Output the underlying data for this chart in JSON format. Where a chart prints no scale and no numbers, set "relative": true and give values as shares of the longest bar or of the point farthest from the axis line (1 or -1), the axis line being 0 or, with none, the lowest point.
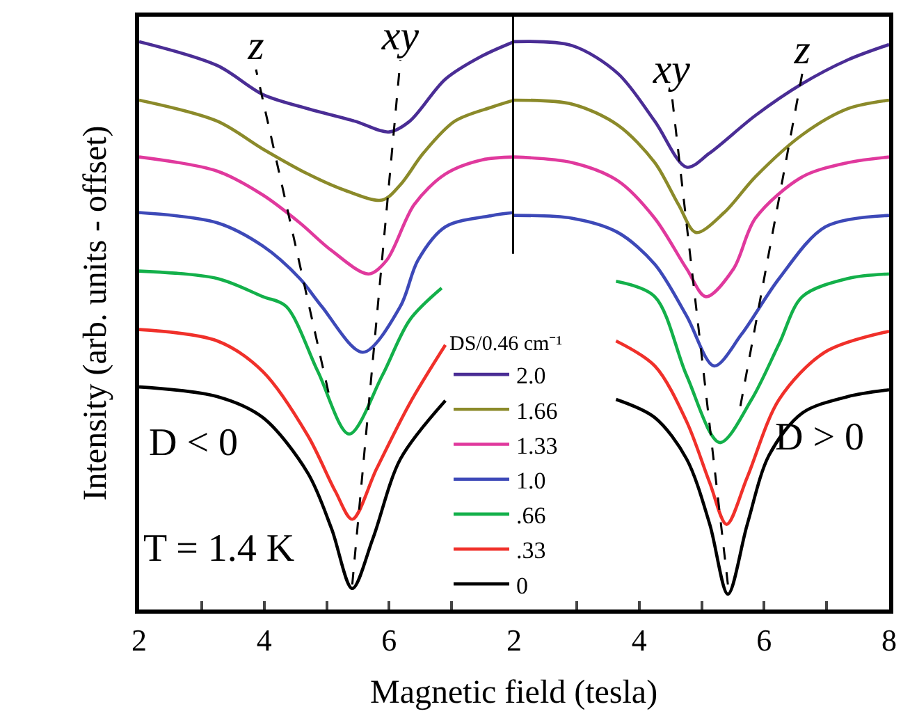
{
  "chart_data": [
    {
      "type": "line",
      "ylabel": "Intensity (arb. units - offset)",
      "xlabel": "Magnetic field (tesla)",
      "legend_title": "DS/0.46 cm⁻¹",
      "legend": "bottom right",
      "relative": true,
      "tick_labels": "x",
      "xlim": [
        2,
        8
      ],
      "xticks": [
        2,
        {
          "value": 3,
          "label": null
        },
        4,
        {
          "value": 5,
          "label": null
        },
        6,
        {
          "value": 7,
          "label": null
        }
      ],
      "annotations": [
        "D < 0",
        "T = 1.4 K"
      ],
      "ref_lines": [
        {
          "axis": "x",
          "value": 8,
          "color": "#000000"
        }
      ],
      "series": [
        {
          "name": "2.0",
          "color": "#4a2d95",
          "x": [
            2,
            3.25,
            3.98,
            4.7,
            5.45,
            6.0,
            6.33,
            6.9,
            7.49,
            8
          ],
          "values": [
            1.0,
            0.958,
            0.907,
            0.882,
            0.86,
            0.841,
            0.86,
            0.934,
            0.975,
            1.0
          ]
        },
        {
          "name": "1.66",
          "color": "#8b8a2a",
          "x": [
            2,
            3.25,
            3.98,
            4.7,
            5.3,
            5.89,
            6.18,
            6.55,
            7.05,
            7.65,
            8
          ],
          "values": [
            0.897,
            0.86,
            0.811,
            0.767,
            0.738,
            0.721,
            0.748,
            0.804,
            0.86,
            0.885,
            0.897
          ]
        },
        {
          "name": "1.33",
          "color": "#e0399d",
          "x": [
            2,
            3.25,
            3.98,
            4.57,
            5.08,
            5.67,
            5.96,
            6.4,
            6.9,
            7.49,
            8
          ],
          "values": [
            0.797,
            0.772,
            0.73,
            0.681,
            0.632,
            0.591,
            0.615,
            0.713,
            0.767,
            0.792,
            0.797
          ]
        },
        {
          "name": "1.0",
          "color": "#3d49b8",
          "x": [
            2,
            3.25,
            3.98,
            4.57,
            4.92,
            5.58,
            6.18,
            6.46,
            6.9,
            7.65,
            8
          ],
          "values": [
            0.699,
            0.681,
            0.64,
            0.583,
            0.534,
            0.453,
            0.534,
            0.615,
            0.674,
            0.694,
            0.699
          ]
        },
        {
          "name": ".66",
          "color": "#13b04a",
          "x": [
            2,
            3.25,
            3.98,
            4.35,
            4.86,
            5.36,
            5.89,
            6.33,
            6.84
          ],
          "values": [
            0.596,
            0.583,
            0.551,
            0.534,
            0.419,
            0.309,
            0.412,
            0.51,
            0.566
          ]
        },
        {
          "name": ".33",
          "color": "#f0302a",
          "x": [
            2,
            3.25,
            3.98,
            4.7,
            5.14,
            5.41,
            5.8,
            6.33,
            6.9
          ],
          "values": [
            0.493,
            0.473,
            0.419,
            0.306,
            0.208,
            0.159,
            0.248,
            0.363,
            0.466
          ]
        },
        {
          "name": "0",
          "color": "#000000",
          "x": [
            2,
            3.25,
            3.98,
            4.7,
            5.08,
            5.41,
            5.74,
            6.18,
            6.9
          ],
          "values": [
            0.392,
            0.375,
            0.338,
            0.24,
            0.142,
            0.037,
            0.125,
            0.265,
            0.368
          ]
        },
        {
          "name": "z",
          "color": "#000000",
          "line_style": "dashed",
          "x": [
            5.03,
            3.87
          ],
          "values": [
            0.382,
            0.951
          ]
        },
        {
          "name": "xy",
          "color": "#000000",
          "line_style": "dashed",
          "x": [
            5.41,
            6.18
          ],
          "values": [
            0.044,
            0.968
          ]
        }
      ]
    },
    {
      "type": "line",
      "relative": true,
      "tick_labels": "x",
      "xlim": [
        2,
        8
      ],
      "xticks": [
        2,
        {
          "value": 3,
          "label": null
        },
        4,
        {
          "value": 5,
          "label": null
        },
        6,
        {
          "value": 7,
          "label": null
        },
        8
      ],
      "annotations": [
        "D > 0"
      ],
      "series": [
        {
          "color": "#4a2d95",
          "x": [
            2,
            2.93,
            3.66,
            4.25,
            4.76,
            5.13,
            5.86,
            6.61,
            7.34,
            8
          ],
          "values": [
            1.0,
            0.993,
            0.944,
            0.86,
            0.779,
            0.804,
            0.87,
            0.926,
            0.968,
            0.995
          ]
        },
        {
          "color": "#8b8a2a",
          "x": [
            2,
            2.93,
            3.66,
            4.25,
            4.63,
            4.91,
            5.36,
            5.86,
            6.61,
            7.34,
            8
          ],
          "values": [
            0.897,
            0.89,
            0.853,
            0.787,
            0.713,
            0.664,
            0.699,
            0.762,
            0.836,
            0.882,
            0.897
          ]
        },
        {
          "color": "#e0399d",
          "x": [
            2,
            2.93,
            3.66,
            4.25,
            4.76,
            5.07,
            5.51,
            5.86,
            6.61,
            7.34,
            8
          ],
          "values": [
            0.797,
            0.787,
            0.755,
            0.689,
            0.6,
            0.551,
            0.6,
            0.689,
            0.762,
            0.787,
            0.797
          ]
        },
        {
          "color": "#3d49b8",
          "x": [
            2,
            2.93,
            3.66,
            4.25,
            4.76,
            5.2,
            5.64,
            6.24,
            6.98,
            8
          ],
          "values": [
            0.694,
            0.689,
            0.664,
            0.608,
            0.517,
            0.429,
            0.485,
            0.583,
            0.674,
            0.694
          ]
        },
        {
          "color": "#13b04a",
          "x": [
            3.63,
            4.25,
            4.76,
            5.29,
            5.8,
            6.24,
            6.61,
            7.34,
            8
          ],
          "values": [
            0.578,
            0.551,
            0.412,
            0.294,
            0.37,
            0.468,
            0.551,
            0.583,
            0.591
          ]
        },
        {
          "color": "#f0302a",
          "x": [
            3.63,
            4.25,
            4.76,
            5.13,
            5.4,
            5.73,
            6.24,
            6.97,
            8
          ],
          "values": [
            0.473,
            0.429,
            0.331,
            0.223,
            0.15,
            0.233,
            0.37,
            0.453,
            0.49
          ]
        },
        {
          "color": "#000000",
          "x": [
            3.63,
            4.25,
            4.76,
            5.13,
            5.42,
            5.73,
            6.08,
            6.61,
            7.34,
            8
          ],
          "values": [
            0.37,
            0.338,
            0.265,
            0.15,
            0.027,
            0.15,
            0.272,
            0.346,
            0.375,
            0.387
          ]
        },
        {
          "name": "xy",
          "color": "#000000",
          "line_style": "dashed",
          "x": [
            5.42,
            4.52
          ],
          "values": [
            0.044,
            0.909
          ]
        },
        {
          "name": "z",
          "color": "#000000",
          "line_style": "dashed",
          "x": [
            5.62,
            6.61
          ],
          "values": [
            0.358,
            0.944
          ]
        }
      ]
    }
  ]
}
